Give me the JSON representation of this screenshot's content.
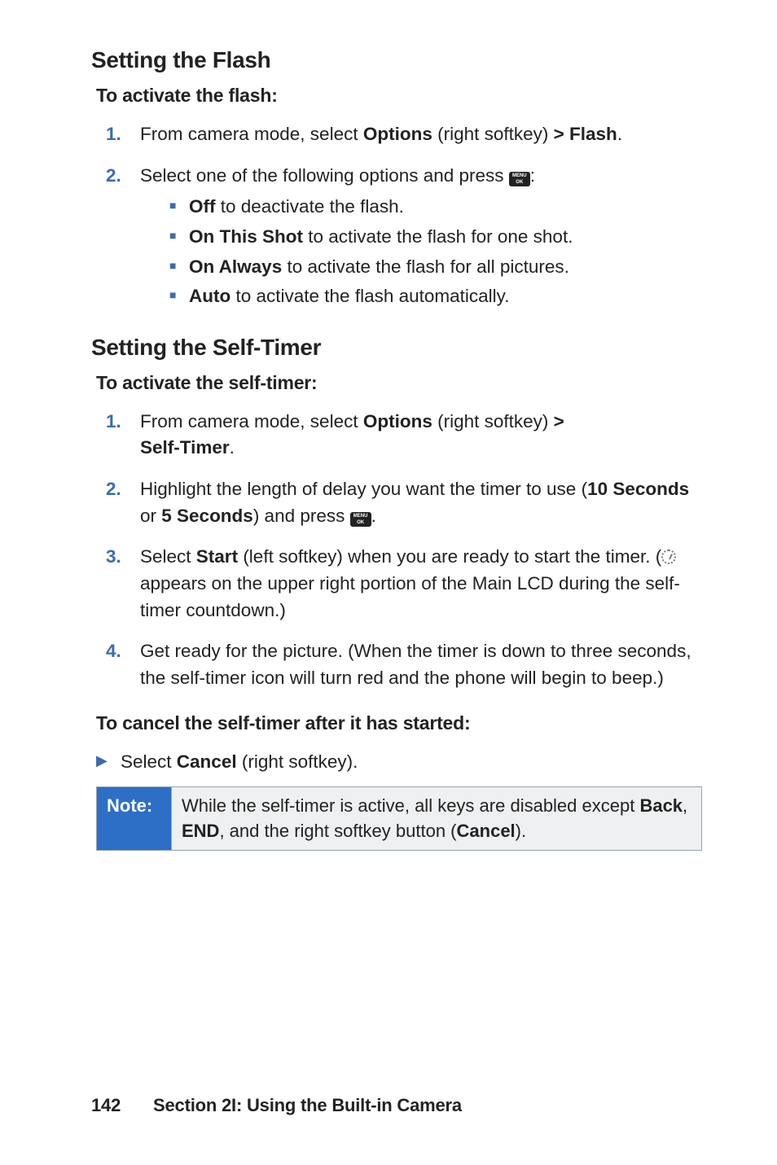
{
  "flash": {
    "heading": "Setting the Flash",
    "subheading": "To activate the flash:",
    "steps": [
      {
        "num": "1.",
        "prefix": "From camera mode, select ",
        "b1": "Options",
        "mid": " (right softkey) ",
        "b2": "> Flash",
        "suffix": "."
      },
      {
        "num": "2.",
        "prefix": "Select one of the following options and press ",
        "suffix": ":",
        "sub": [
          {
            "b": "Off",
            "t": " to deactivate the flash."
          },
          {
            "b": "On This Shot",
            "t": " to activate the flash for one shot."
          },
          {
            "b": "On Always",
            "t": " to activate the flash for all pictures."
          },
          {
            "b": "Auto",
            "t": " to activate the flash automatically."
          }
        ]
      }
    ]
  },
  "timer": {
    "heading": "Setting the Self-Timer",
    "subheading": "To activate the self-timer:",
    "steps": [
      {
        "num": "1.",
        "prefix": "From camera mode, select ",
        "b1": "Options",
        "mid": " (right softkey) ",
        "b2": ">",
        "line2_b": "Self-Timer",
        "line2_suffix": "."
      },
      {
        "num": "2.",
        "prefix": "Highlight the length of delay you want the timer to use (",
        "b1": "10 Seconds",
        "mid": " or ",
        "b2": "5 Seconds",
        "mid2": ") and press ",
        "suffix": "."
      },
      {
        "num": "3.",
        "prefix": "Select ",
        "b1": "Start",
        "mid": " (left softkey) when you are ready to start the timer. (",
        "mid2": " appears on the upper right portion of the Main LCD during the self-timer countdown.)"
      },
      {
        "num": "4.",
        "prefix": "Get ready for the picture. (When the timer is down to three seconds, the self-timer icon will turn red and the phone will begin to beep.)"
      }
    ],
    "cancel_heading": "To cancel the self-timer after it has started:",
    "cancel_prefix": "Select ",
    "cancel_b": "Cancel",
    "cancel_suffix": " (right softkey)."
  },
  "note": {
    "label": "Note:",
    "prefix": "While the self-timer is active, all keys are disabled except ",
    "b1": "Back",
    "sep": ", ",
    "b2": "END",
    "mid": ", and the right softkey button (",
    "b3": "Cancel",
    "suffix": ")."
  },
  "footer": {
    "page": "142",
    "section": "Section 2I: Using the Built-in Camera"
  }
}
